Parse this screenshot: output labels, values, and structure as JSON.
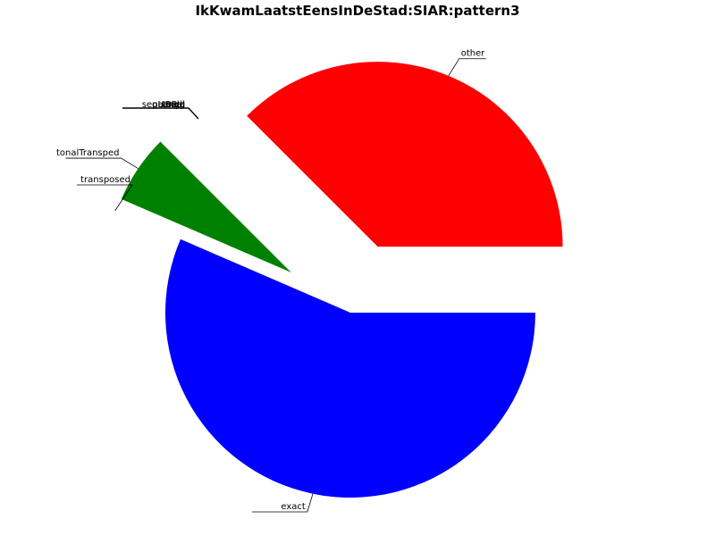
{
  "chart_data": {
    "type": "pie",
    "title": "IkKwamLaatstEensInDeStad:SIAR:pattern3",
    "slices": [
      {
        "label": "other",
        "value": 37.5,
        "color": "#ff0000",
        "exploded": true
      },
      {
        "label": "tonalTransped",
        "value": 6.0,
        "color": "#008000",
        "exploded": true
      },
      {
        "label": "transposed",
        "value": 0.0,
        "color": "#0000ff",
        "exploded": true
      },
      {
        "label": "exact",
        "value": 56.5,
        "color": "#0000ff",
        "exploded": false
      }
    ],
    "overlapping_labels": [
      "tBelg",
      "Rel",
      "Lange",
      "sequence",
      "pattern",
      "ll"
    ],
    "legend": "none"
  }
}
